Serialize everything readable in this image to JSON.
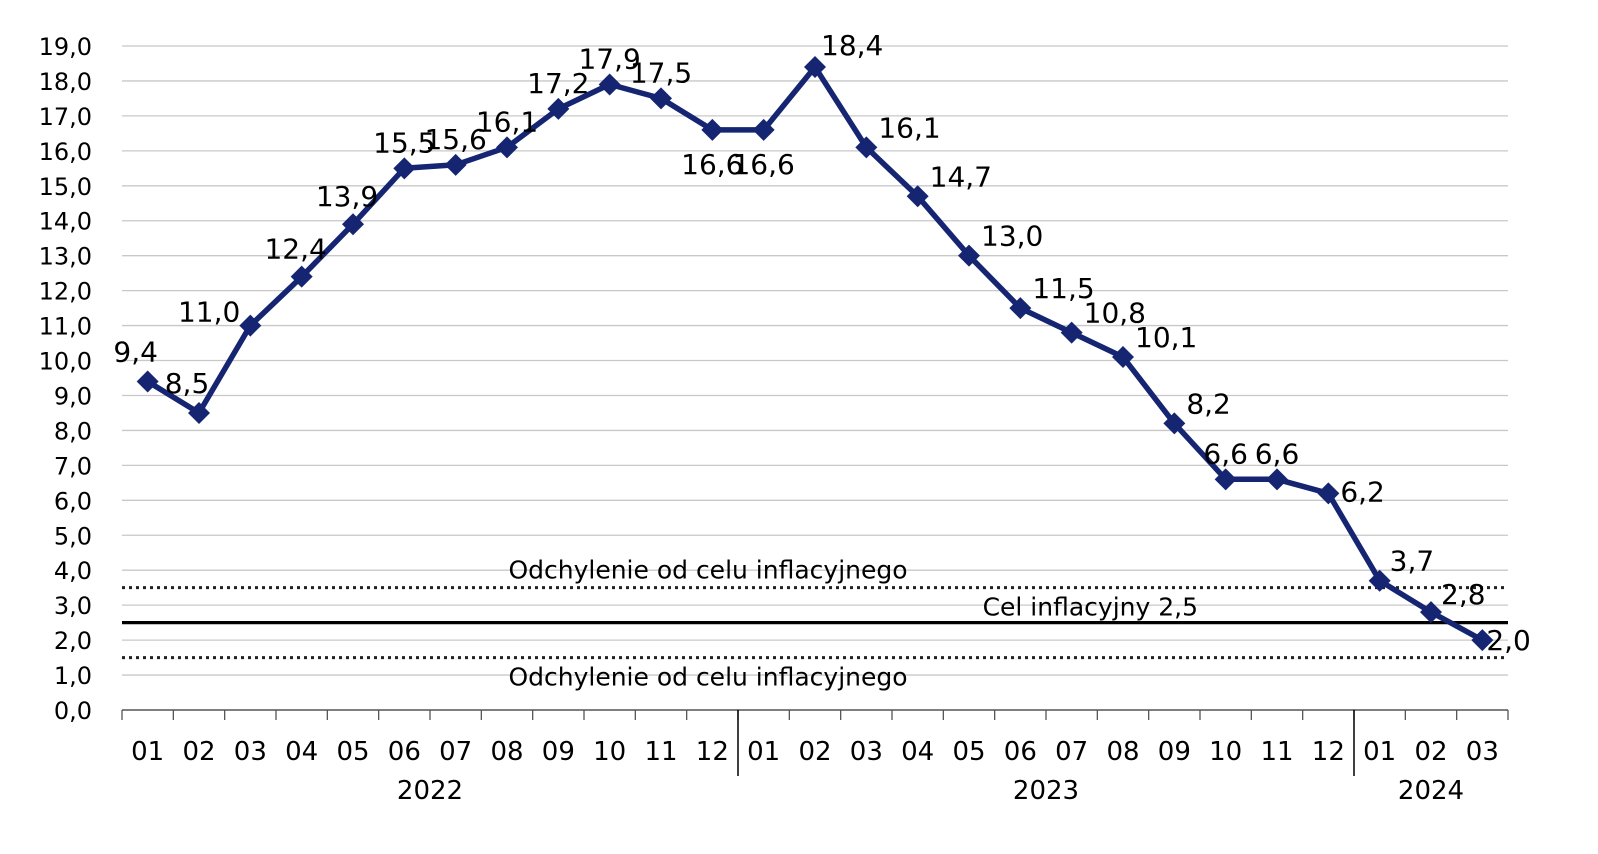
{
  "chart_data": {
    "type": "line",
    "title": "",
    "xlabel": "",
    "ylabel": "",
    "ylim": [
      0,
      19
    ],
    "yticks": [
      "0,0",
      "1,0",
      "2,0",
      "3,0",
      "4,0",
      "5,0",
      "6,0",
      "7,0",
      "8,0",
      "9,0",
      "10,0",
      "11,0",
      "12,0",
      "13,0",
      "14,0",
      "15,0",
      "16,0",
      "17,0",
      "18,0",
      "19,0"
    ],
    "categories": [
      "01",
      "02",
      "03",
      "04",
      "05",
      "06",
      "07",
      "08",
      "09",
      "10",
      "11",
      "12",
      "01",
      "02",
      "03",
      "04",
      "05",
      "06",
      "07",
      "08",
      "09",
      "10",
      "11",
      "12",
      "01",
      "02",
      "03"
    ],
    "years": [
      {
        "label": "2022",
        "start": 0,
        "end": 11
      },
      {
        "label": "2023",
        "start": 12,
        "end": 23
      },
      {
        "label": "2024",
        "start": 24,
        "end": 26
      }
    ],
    "series": [
      {
        "values": [
          9.4,
          8.5,
          11.0,
          12.4,
          13.9,
          15.5,
          15.6,
          16.1,
          17.2,
          17.9,
          17.5,
          16.6,
          16.6,
          18.4,
          16.1,
          14.7,
          13.0,
          11.5,
          10.8,
          10.1,
          8.2,
          6.6,
          6.6,
          6.2,
          3.7,
          2.8,
          2.0
        ],
        "labels": [
          "9,4",
          "8,5",
          "11,0",
          "12,4",
          "13,9",
          "15,5",
          "15,6",
          "16,1",
          "17,2",
          "17,9",
          "17,5",
          "16,6",
          "16,6",
          "18,4",
          "16,1",
          "14,7",
          "13,0",
          "11,5",
          "10,8",
          "10,1",
          "8,2",
          "6,6",
          "6,6",
          "6,2",
          "3,7",
          "2,8",
          "2,0"
        ],
        "color": "#152572"
      }
    ],
    "reference_lines": [
      {
        "label": "Odchylenie od celu inflacyjnego",
        "value": 3.5,
        "style": "dotted"
      },
      {
        "label": "Cel inflacyjny 2,5",
        "value": 2.5,
        "style": "solid"
      },
      {
        "label": "Odchylenie od celu inflacyjnego",
        "value": 1.5,
        "style": "dotted"
      }
    ],
    "grid": true
  }
}
